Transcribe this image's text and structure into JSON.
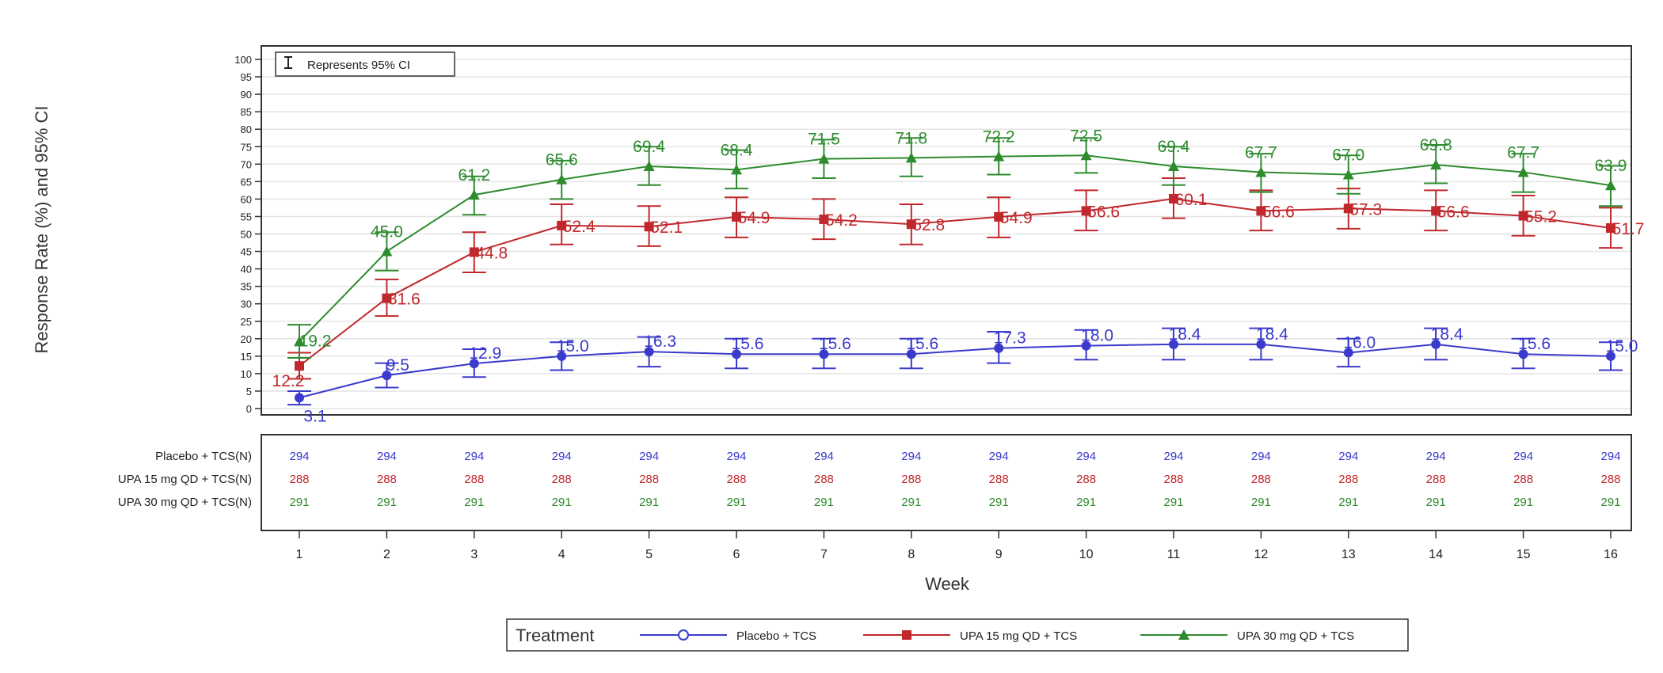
{
  "chart_data": {
    "type": "line",
    "ylabel": "Response Rate (%) and 95% CI",
    "xlabel": "Week",
    "ylim": [
      0,
      100
    ],
    "y_ticks": [
      0,
      5,
      10,
      15,
      20,
      25,
      30,
      35,
      40,
      45,
      50,
      55,
      60,
      65,
      70,
      75,
      80,
      85,
      90,
      95,
      100
    ],
    "x": [
      1,
      2,
      3,
      4,
      5,
      6,
      7,
      8,
      9,
      10,
      11,
      12,
      13,
      14,
      15,
      16
    ],
    "grid": true,
    "ci_note": "Represents 95% CI",
    "legend": {
      "title": "Treatment",
      "position": "bottom"
    },
    "series": [
      {
        "name": "Placebo + TCS",
        "n_label": "Placebo + TCS(N)",
        "marker": "circle",
        "color": "#3a3acc",
        "values": [
          3.1,
          9.5,
          12.9,
          15.0,
          16.3,
          15.6,
          15.6,
          15.6,
          17.3,
          18.0,
          18.4,
          18.4,
          16.0,
          18.4,
          15.6,
          15.0
        ],
        "labels": [
          "3.1",
          "9.5",
          "12.9",
          "15.0",
          "16.3",
          "15.6",
          "15.6",
          "15.6",
          "17.3",
          "18.0",
          "18.4",
          "18.4",
          "16.0",
          "18.4",
          "15.6",
          "15.0"
        ],
        "ci_low": [
          1.1,
          6.0,
          9.0,
          11.0,
          12.0,
          11.5,
          11.5,
          11.5,
          13.0,
          14.0,
          14.0,
          14.0,
          12.0,
          14.0,
          11.5,
          11.0
        ],
        "ci_high": [
          5.0,
          13.0,
          17.0,
          19.0,
          20.5,
          20.0,
          20.0,
          20.0,
          22.0,
          22.5,
          23.0,
          23.0,
          20.0,
          23.0,
          20.0,
          19.0
        ],
        "n": [
          "294",
          "294",
          "294",
          "294",
          "294",
          "294",
          "294",
          "294",
          "294",
          "294",
          "294",
          "294",
          "294",
          "294",
          "294",
          "294"
        ]
      },
      {
        "name": "UPA 15 mg QD + TCS",
        "n_label": "UPA 15 mg QD + TCS(N)",
        "marker": "square",
        "color": "#c0282d",
        "values": [
          12.2,
          31.6,
          44.8,
          52.4,
          52.1,
          54.9,
          54.2,
          52.8,
          54.9,
          56.6,
          60.1,
          56.6,
          57.3,
          56.6,
          55.2,
          51.7
        ],
        "labels": [
          "12.2",
          "31.6",
          "44.8",
          "52.4",
          "52.1",
          "54.9",
          "54.2",
          "52.8",
          "54.9",
          "56.6",
          "60.1",
          "56.6",
          "57.3",
          "56.6",
          "55.2",
          "51.7"
        ],
        "ci_low": [
          8.5,
          26.5,
          39.0,
          47.0,
          46.5,
          49.0,
          48.5,
          47.0,
          49.0,
          51.0,
          54.5,
          51.0,
          51.5,
          51.0,
          49.5,
          46.0
        ],
        "ci_high": [
          16.0,
          37.0,
          50.5,
          58.5,
          58.0,
          60.5,
          60.0,
          58.5,
          60.5,
          62.5,
          66.0,
          62.5,
          63.0,
          62.5,
          61.0,
          57.5
        ],
        "n": [
          "288",
          "288",
          "288",
          "288",
          "288",
          "288",
          "288",
          "288",
          "288",
          "288",
          "288",
          "288",
          "288",
          "288",
          "288",
          "288"
        ]
      },
      {
        "name": "UPA 30 mg QD + TCS",
        "n_label": "UPA 30 mg QD + TCS(N)",
        "marker": "triangle",
        "color": "#2e8b2e",
        "values": [
          19.2,
          45.0,
          61.2,
          65.6,
          69.4,
          68.4,
          71.5,
          71.8,
          72.2,
          72.5,
          69.4,
          67.7,
          67.0,
          69.8,
          67.7,
          63.9
        ],
        "labels": [
          "19.2",
          "45.0",
          "61.2",
          "65.6",
          "69.4",
          "68.4",
          "71.5",
          "71.8",
          "72.2",
          "72.5",
          "69.4",
          "67.7",
          "67.0",
          "69.8",
          "67.7",
          "63.9"
        ],
        "ci_low": [
          14.5,
          39.5,
          55.5,
          60.0,
          64.0,
          63.0,
          66.0,
          66.5,
          67.0,
          67.5,
          64.0,
          62.0,
          61.5,
          64.5,
          62.0,
          58.0
        ],
        "ci_high": [
          24.0,
          50.5,
          66.5,
          71.0,
          75.0,
          74.0,
          77.0,
          77.5,
          77.5,
          77.5,
          75.0,
          73.0,
          72.5,
          75.5,
          73.0,
          69.5
        ],
        "n": [
          "291",
          "291",
          "291",
          "291",
          "291",
          "291",
          "291",
          "291",
          "291",
          "291",
          "291",
          "291",
          "291",
          "291",
          "291",
          "291"
        ]
      }
    ]
  }
}
